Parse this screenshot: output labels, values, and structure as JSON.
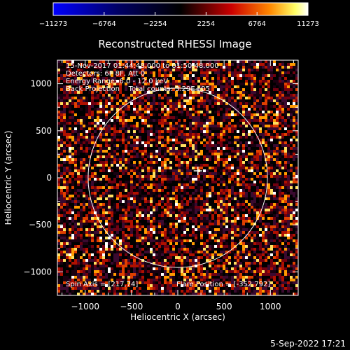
{
  "chart_data": {
    "type": "heatmap",
    "title": "Reconstructed RHESSI Image",
    "xlabel": "Heliocentric X (arcsec)",
    "ylabel": "Heliocentric Y (arcsec)",
    "xlim": [
      -1300,
      1300
    ],
    "ylim": [
      -1250,
      1250
    ],
    "xticks": [
      -1000,
      -500,
      0,
      500,
      1000
    ],
    "yticks": [
      -1000,
      -500,
      0,
      500,
      1000
    ],
    "colorbar": {
      "range": [
        -11273,
        11273
      ],
      "ticks": [
        -11273,
        -6764,
        -2254,
        2254,
        6764,
        11273
      ],
      "colormap": "blue-black-red-yellow-white"
    },
    "annotations": [
      "15-Nov-2017 01:44:48.000 to 01:50:48.000",
      "Detectors: 6F 8F, Att 0",
      "Energy Range: 6.0 - 12.0 keV",
      "Back Projection    Total counts: 3.29E+05"
    ],
    "spin_axis": "Spin Axis = [217,74]",
    "flare_position": "Flare Position = [-352,792]",
    "solar_limb": {
      "center": [
        0,
        0
      ],
      "radius_arcsec": 968
    },
    "marker": {
      "x": 217,
      "y": 74
    },
    "footer": "5-Sep-2022 17:21"
  }
}
